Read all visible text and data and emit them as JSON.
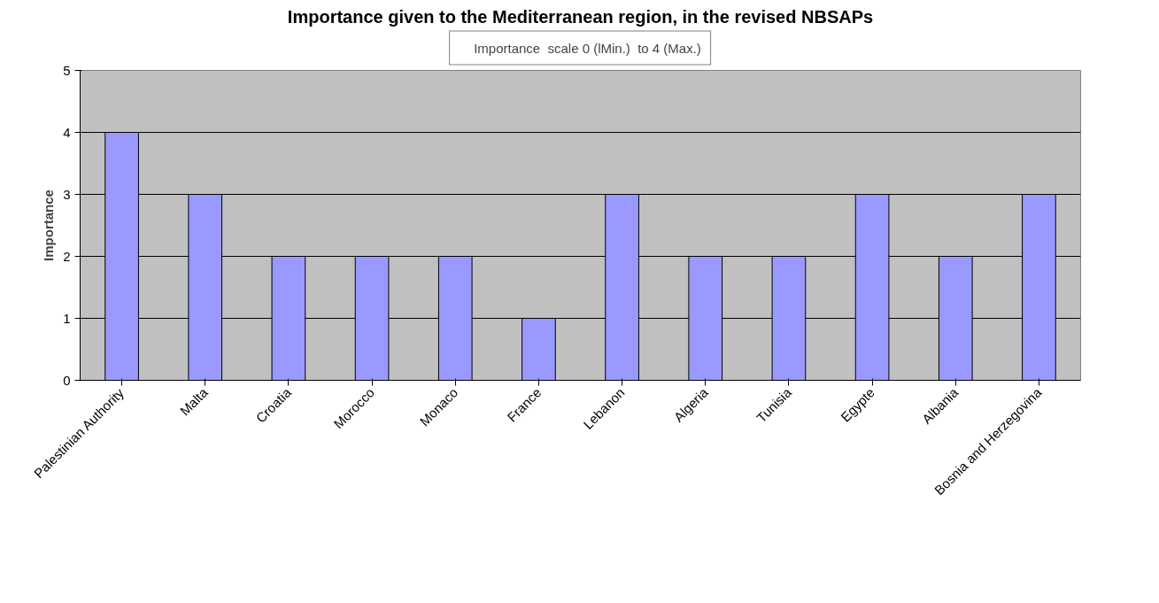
{
  "chart_data": {
    "type": "bar",
    "title": "Importance given to the Mediterranean region, in the revised NBSAPs",
    "ylabel": "Importance",
    "categories": [
      "Palestinian Authority",
      "Malta",
      "Croatia",
      "Morocco",
      "Monaco",
      "France",
      "Lebanon",
      "Algeria",
      "Tunisia",
      "Egypte",
      "Albania",
      "Bosnia and Herzegovina"
    ],
    "series": [
      {
        "name": "Importance  scale 0 (lMin.)  to 4 (Max.)",
        "color": "#9999ff",
        "values": [
          4,
          3,
          2,
          2,
          2,
          1,
          3,
          2,
          2,
          3,
          2,
          3
        ]
      }
    ],
    "ylim": [
      0,
      5
    ],
    "yticks": [
      0,
      1,
      2,
      3,
      4,
      5
    ],
    "grid": "y",
    "legend": "top"
  }
}
